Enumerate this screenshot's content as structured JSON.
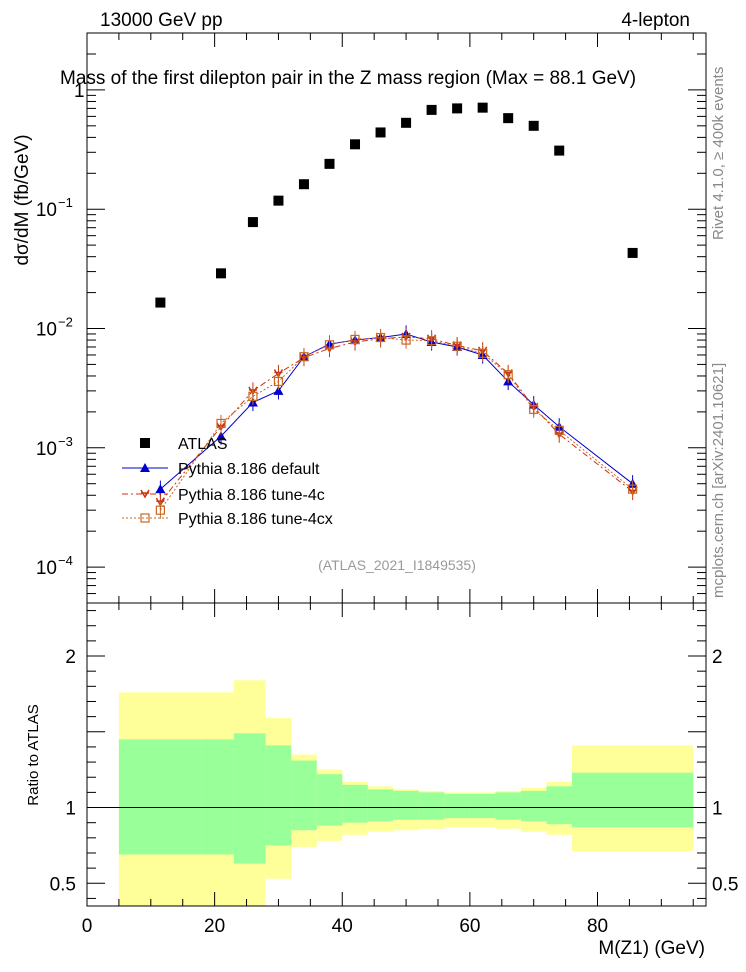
{
  "header": {
    "left": "13000 GeV pp",
    "right": "4-lepton",
    "side_rivet": "Rivet 4.1.0, ≥ 400k events",
    "side_mcplots": "mcplots.cern.ch [arXiv:2401.10621]",
    "watermark": "(ATLAS_2021_I1849535)"
  },
  "chart_data": {
    "type": "scatter",
    "title": "Mass of the first dilepton pair in the Z mass region (Max = 88.1 GeV)",
    "xlabel": "M(Z1) (GeV)",
    "ylabel": "dσ/dM (fb/GeV)",
    "ratio_ylabel": "Ratio to ATLAS",
    "xlim": [
      0,
      97
    ],
    "ylim": [
      5e-05,
      3
    ],
    "yscale": "log",
    "ratio_ylim": [
      0.35,
      2.35
    ],
    "x_ticks": [
      0,
      20,
      40,
      60,
      80
    ],
    "x_tick_labels": [
      "0",
      "20",
      "40",
      "60",
      "80"
    ],
    "y_ticks": [
      0.0001,
      0.001,
      0.01,
      0.1,
      1
    ],
    "y_tick_labels": [
      [
        "10",
        "−4"
      ],
      [
        "10",
        "−3"
      ],
      [
        "10",
        "−2"
      ],
      [
        "10",
        "−1"
      ],
      [
        "1",
        ""
      ]
    ],
    "ratio_ticks": [
      0.5,
      1,
      2
    ],
    "ratio_tick_labels": [
      "0.5",
      "1",
      "2"
    ],
    "bin_edges": [
      5,
      18,
      23,
      28,
      32,
      36,
      40,
      44,
      48,
      52,
      56,
      60,
      64,
      68,
      72,
      76,
      95
    ],
    "x": [
      11.5,
      21,
      26,
      30,
      34,
      38,
      42,
      46,
      50,
      54,
      58,
      62,
      66,
      70,
      74,
      85.5
    ],
    "series": [
      {
        "name": "ATLAS",
        "color": "#000000",
        "values": [
          0.0165,
          0.029,
          0.078,
          0.118,
          0.162,
          0.24,
          0.35,
          0.44,
          0.53,
          0.68,
          0.7,
          0.71,
          0.58,
          0.5,
          0.31,
          0.043
        ]
      },
      {
        "name": "Pythia 8.186 default",
        "color": "#0000cc",
        "values": [
          0.00045,
          0.00125,
          0.0024,
          0.003,
          0.0058,
          0.0074,
          0.008,
          0.0084,
          0.009,
          0.0077,
          0.007,
          0.006,
          0.0036,
          0.0023,
          0.0015,
          0.0005
        ]
      },
      {
        "name": "Pythia 8.186 tune-4c",
        "color": "#cc3311",
        "values": [
          0.00035,
          0.0015,
          0.003,
          0.0042,
          0.0057,
          0.0068,
          0.0077,
          0.0082,
          0.0085,
          0.0082,
          0.0072,
          0.0065,
          0.0042,
          0.0022,
          0.0013,
          0.00043
        ]
      },
      {
        "name": "Pythia 8.186 tune-4cx",
        "color": "#cc6622",
        "values": [
          0.0003,
          0.0016,
          0.0027,
          0.0036,
          0.0058,
          0.0073,
          0.0081,
          0.0084,
          0.008,
          0.0079,
          0.0071,
          0.0062,
          0.0041,
          0.0021,
          0.0014,
          0.00045
        ]
      }
    ],
    "ratio_band_outer": {
      "color": "#ffff99",
      "lower": [
        0.0,
        0.0,
        0.0,
        0.53,
        0.74,
        0.78,
        0.82,
        0.84,
        0.85,
        0.86,
        0.87,
        0.87,
        0.86,
        0.84,
        0.82,
        0.71
      ],
      "upper": [
        1.76,
        1.76,
        1.84,
        1.59,
        1.35,
        1.25,
        1.17,
        1.14,
        1.12,
        1.11,
        1.1,
        1.1,
        1.11,
        1.13,
        1.17,
        1.41
      ]
    },
    "ratio_band_inner": {
      "color": "#99ff99",
      "lower": [
        0.69,
        0.69,
        0.63,
        0.75,
        0.85,
        0.88,
        0.9,
        0.91,
        0.92,
        0.92,
        0.93,
        0.93,
        0.92,
        0.91,
        0.89,
        0.87
      ],
      "upper": [
        1.45,
        1.45,
        1.49,
        1.41,
        1.31,
        1.22,
        1.15,
        1.12,
        1.11,
        1.1,
        1.09,
        1.09,
        1.1,
        1.11,
        1.14,
        1.23
      ]
    }
  }
}
